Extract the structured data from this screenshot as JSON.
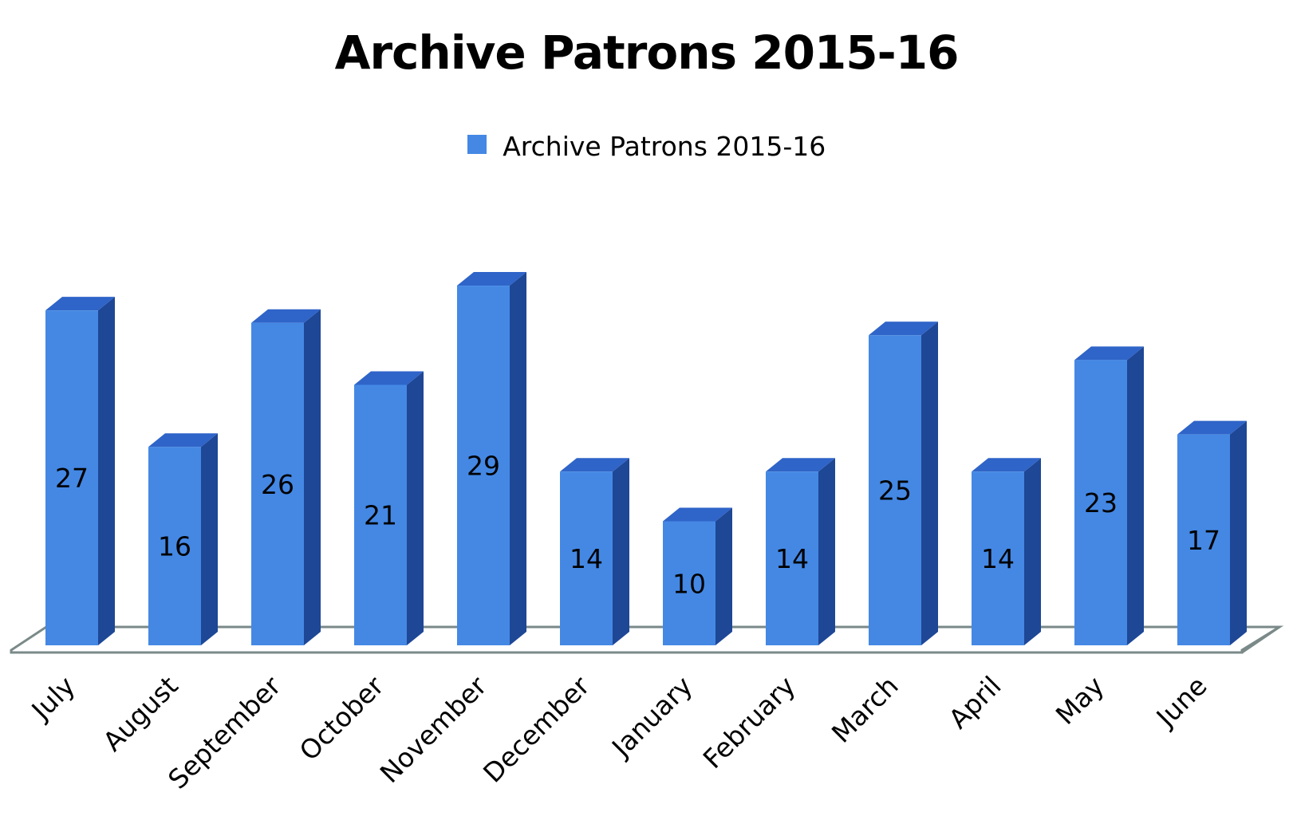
{
  "colors": {
    "bar_front": "#4488E4",
    "bar_side": "#1E4796",
    "bar_top": "#2F64C8",
    "floor_stroke": "#7A8A88"
  },
  "chart_data": {
    "type": "bar",
    "title": "Archive Patrons 2015-16",
    "legend_position": "top",
    "grid": false,
    "three_d": true,
    "series": [
      {
        "name": "Archive Patrons 2015-16",
        "values": [
          27,
          16,
          26,
          21,
          29,
          14,
          10,
          14,
          25,
          14,
          23,
          17
        ]
      }
    ],
    "categories": [
      "July",
      "August",
      "September",
      "October",
      "November",
      "December",
      "January",
      "February",
      "March",
      "April",
      "May",
      "June"
    ],
    "data_labels": [
      "27",
      "16",
      "26",
      "21",
      "29",
      "14",
      "10",
      "14",
      "25",
      "14",
      "23",
      "17"
    ]
  }
}
